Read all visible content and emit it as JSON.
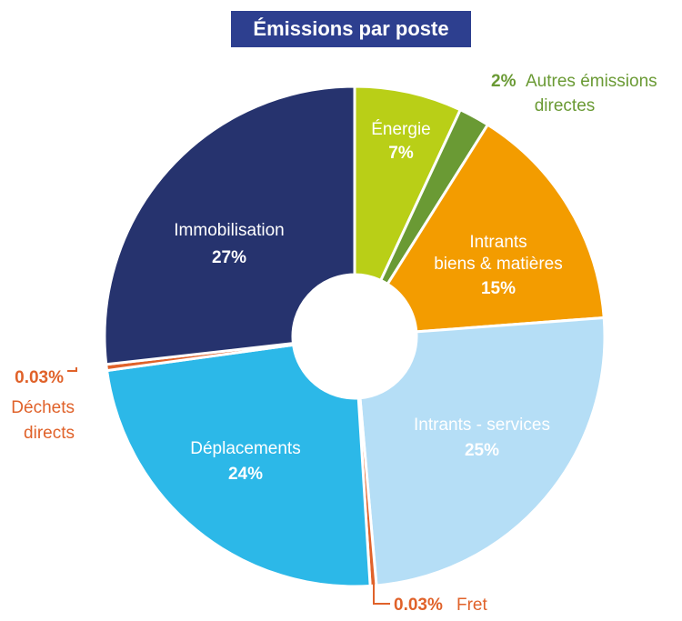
{
  "chart_data": {
    "type": "pie",
    "title": "Émissions par poste",
    "slices": [
      {
        "label": "Énergie",
        "value_label": "7%",
        "value": 7,
        "color": "#b9cf17",
        "text_color": "#ffffff"
      },
      {
        "label": "Autres émissions directes",
        "value_label": "2%",
        "value": 2,
        "color": "#6a9a34",
        "text_color": "#6a9a34"
      },
      {
        "label_lines": [
          "Intrants",
          "biens & matières"
        ],
        "value_label": "15%",
        "value": 15,
        "color": "#f39c00",
        "text_color": "#ffffff"
      },
      {
        "label": "Intrants - services",
        "value_label": "25%",
        "value": 25,
        "color": "#b5def6",
        "text_color": "#ffffff"
      },
      {
        "label": "Fret",
        "value_label": "0.03%",
        "value": 0.03,
        "color": "#e0622a",
        "text_color": "#e0622a"
      },
      {
        "label": "Déplacements",
        "value_label": "24%",
        "value": 24,
        "color": "#2cb8e8",
        "text_color": "#ffffff"
      },
      {
        "label_lines": [
          "Déchets",
          "directs"
        ],
        "value_label": "0.03%",
        "value": 0.03,
        "color": "#e0622a",
        "text_color": "#e0622a"
      },
      {
        "label": "Immobilisation",
        "value_label": "27%",
        "value": 27,
        "color": "#26336e",
        "text_color": "#ffffff"
      }
    ]
  }
}
